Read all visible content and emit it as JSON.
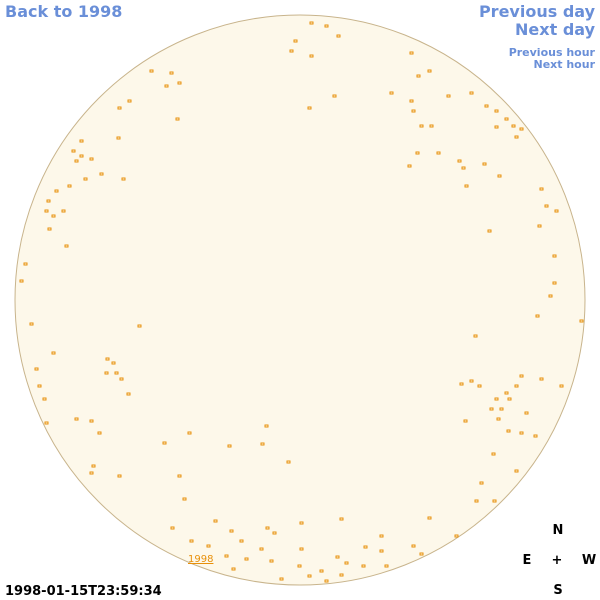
{
  "links": {
    "back": "Back to 1998",
    "previous_day": "Previous day",
    "next_day": "Next day",
    "previous_hour": "Previous hour",
    "next_hour": "Next hour"
  },
  "disk_label": "1998",
  "timestamp": "1998-01-15T23:59:34",
  "compass": {
    "north": "N",
    "east": "E",
    "center": "+",
    "west": "W",
    "south": "S"
  }
}
